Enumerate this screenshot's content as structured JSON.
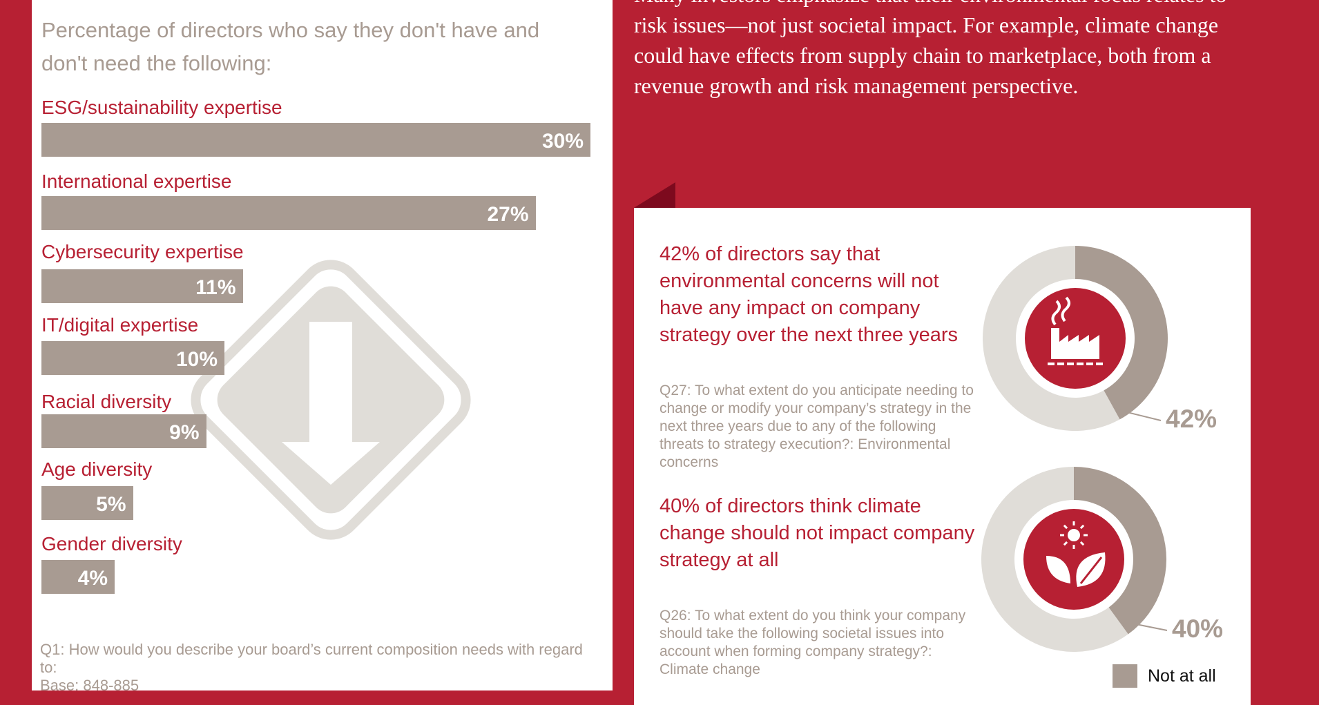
{
  "left_panel": {
    "title": "Percentage of directors who say they don't have and don't need the following:",
    "footnote_line1": "Q1: How would you describe your board’s current composition needs with regard to:",
    "footnote_line2": "Base: 848-885"
  },
  "right_panel": {
    "paragraph": "Many investors emphasize that their environmental focus relates to risk issues—not just societal impact. For example, climate change could have effects from supply chain to marketplace, both from a revenue growth and risk management perspective.",
    "card": {
      "item1": {
        "heading": "42% of directors say that environmental concerns will not have any impact on company strategy over the next three years",
        "question": "Q27: To what extent do you anticipate needing to change or modify your company’s strategy in the next three years due to any of the following threats to strategy execution?: Environmental concerns",
        "value_label": "42%",
        "icon": "factory-icon"
      },
      "item2": {
        "heading": "40% of directors think climate change should not impact company strategy at all",
        "question": "Q26: To what extent do you think your company should take the following societal issues into account when forming company strategy?: Climate change",
        "value_label": "40%",
        "icon": "sun-leaf-icon"
      },
      "legend": "Not at all"
    }
  },
  "colors": {
    "brand_red": "#b72033",
    "bar_gray": "#a89b92",
    "ring_light": "#e0ddd8"
  },
  "chart_data": [
    {
      "type": "bar",
      "orientation": "horizontal",
      "categories": [
        "ESG/sustainability expertise",
        "International expertise",
        "Cybersecurity expertise",
        "IT/digital expertise",
        "Racial diversity",
        "Age diversity",
        "Gender diversity"
      ],
      "values": [
        30,
        27,
        11,
        10,
        9,
        5,
        4
      ],
      "labels": [
        "30%",
        "27%",
        "11%",
        "10%",
        "9%",
        "5%",
        "4%"
      ],
      "unit": "%"
    },
    {
      "type": "pie",
      "variant": "donut",
      "series": [
        {
          "name": "Not at all",
          "values": [
            42,
            58
          ]
        }
      ]
    },
    {
      "type": "pie",
      "variant": "donut",
      "series": [
        {
          "name": "Not at all",
          "values": [
            40,
            60
          ]
        }
      ]
    }
  ]
}
